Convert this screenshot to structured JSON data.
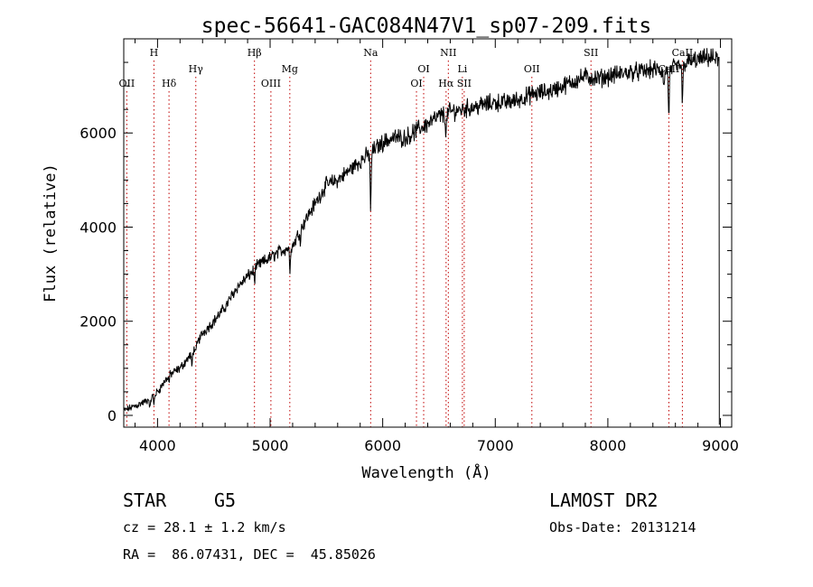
{
  "chart_data": {
    "type": "line",
    "title": "spec-56641-GAC084N47V1_sp07-209.fits",
    "xlabel": "Wavelength (Å)",
    "ylabel": "Flux (relative)",
    "xlim": [
      3700,
      9100
    ],
    "ylim": [
      -250,
      8000
    ],
    "xticks": [
      4000,
      5000,
      6000,
      7000,
      8000,
      9000
    ],
    "yticks": [
      0,
      2000,
      4000,
      6000
    ],
    "series": [
      {
        "name": "spectrum",
        "x": [
          3700,
          3800,
          3900,
          4000,
          4100,
          4200,
          4300,
          4400,
          4500,
          4600,
          4700,
          4800,
          4900,
          5000,
          5100,
          5200,
          5300,
          5400,
          5500,
          5600,
          5700,
          5800,
          5900,
          6000,
          6100,
          6200,
          6300,
          6400,
          6500,
          6600,
          6700,
          6800,
          6900,
          7000,
          7100,
          7200,
          7300,
          7400,
          7500,
          7600,
          7700,
          7800,
          7900,
          8000,
          8100,
          8200,
          8300,
          8400,
          8500,
          8600,
          8700,
          8800,
          8900,
          9000
        ],
        "y": [
          100,
          200,
          300,
          500,
          850,
          1000,
          1300,
          1750,
          2000,
          2300,
          2700,
          2950,
          3200,
          3350,
          3500,
          3600,
          4100,
          4500,
          4900,
          5000,
          5200,
          5400,
          5600,
          5800,
          5900,
          5900,
          6050,
          6200,
          6350,
          6450,
          6500,
          6550,
          6600,
          6650,
          6650,
          6700,
          6800,
          6850,
          6900,
          7000,
          7100,
          7200,
          7150,
          7200,
          7250,
          7300,
          7300,
          7350,
          7300,
          7400,
          7500,
          7550,
          7600,
          7550
        ]
      }
    ],
    "absorption_dips": [
      {
        "x": 3934,
        "depth": 250
      },
      {
        "x": 3968,
        "depth": 200
      },
      {
        "x": 4102,
        "depth": 150
      },
      {
        "x": 4305,
        "depth": 300
      },
      {
        "x": 4340,
        "depth": 200
      },
      {
        "x": 4861,
        "depth": 250
      },
      {
        "x": 5175,
        "depth": 500
      },
      {
        "x": 5270,
        "depth": 200
      },
      {
        "x": 5893,
        "depth": 1300
      },
      {
        "x": 6563,
        "depth": 500
      },
      {
        "x": 8498,
        "depth": 400
      },
      {
        "x": 8542,
        "depth": 1100
      },
      {
        "x": 8662,
        "depth": 900
      }
    ],
    "line_markers": [
      {
        "label": "OII",
        "x": 3727,
        "row": 3
      },
      {
        "label": "H",
        "x": 3968,
        "row": 1
      },
      {
        "label": "Hδ",
        "x": 4102,
        "row": 3
      },
      {
        "label": "Hγ",
        "x": 4340,
        "row": 2
      },
      {
        "label": "Hβ",
        "x": 4861,
        "row": 1
      },
      {
        "label": "OIII",
        "x": 5007,
        "row": 3
      },
      {
        "label": "Mg",
        "x": 5175,
        "row": 2
      },
      {
        "label": "Na",
        "x": 5893,
        "row": 1
      },
      {
        "label": "OI",
        "x": 6300,
        "row": 3
      },
      {
        "label": "OI",
        "x": 6364,
        "row": 2
      },
      {
        "label": "NII",
        "x": 6583,
        "row": 1
      },
      {
        "label": "Hα",
        "x": 6563,
        "row": 3
      },
      {
        "label": "Li",
        "x": 6708,
        "row": 2
      },
      {
        "label": "SII",
        "x": 6724,
        "row": 3
      },
      {
        "label": "OII",
        "x": 7325,
        "row": 2
      },
      {
        "label": "SII",
        "x": 7850,
        "row": 1
      },
      {
        "label": "CaII",
        "x": 8542,
        "row": 2
      },
      {
        "label": "CaII",
        "x": 8662,
        "row": 1
      }
    ]
  },
  "info": {
    "object_type": "STAR",
    "subclass": "G5",
    "survey": "LAMOST DR2",
    "redshift_line": "cz = 28.1 ± 1.2 km/s",
    "obs_date": "Obs-Date: 20131214",
    "coords": "RA =  86.07431, DEC =  45.85026"
  }
}
